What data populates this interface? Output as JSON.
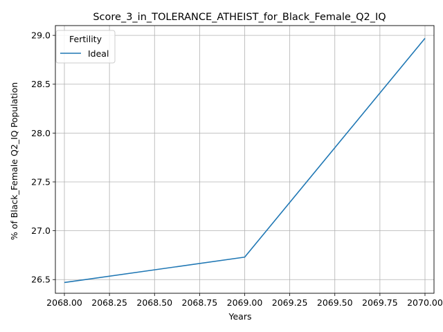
{
  "chart_data": {
    "type": "line",
    "title": "Score_3_in_TOLERANCE_ATHEIST_for_Black_Female_Q2_IQ",
    "xlabel": "Years",
    "ylabel": "% of Black_Female Q2_IQ Population",
    "xlim": [
      2067.95,
      2070.05
    ],
    "ylim": [
      26.36,
      29.1
    ],
    "x_ticks": [
      2068.0,
      2068.25,
      2068.5,
      2068.75,
      2069.0,
      2069.25,
      2069.5,
      2069.75,
      2070.0
    ],
    "x_tick_labels": [
      "2068.00",
      "2068.25",
      "2068.50",
      "2068.75",
      "2069.00",
      "2069.25",
      "2069.50",
      "2069.75",
      "2070.00"
    ],
    "y_ticks": [
      26.5,
      27.0,
      27.5,
      28.0,
      28.5,
      29.0
    ],
    "y_tick_labels": [
      "26.5",
      "27.0",
      "27.5",
      "28.0",
      "28.5",
      "29.0"
    ],
    "grid": true,
    "legend": {
      "title": "Fertility",
      "placement": "upper-left"
    },
    "series": [
      {
        "name": "Ideal",
        "color": "#1f77b4",
        "x": [
          2068,
          2069,
          2070
        ],
        "y": [
          26.47,
          26.73,
          28.97
        ]
      }
    ]
  }
}
